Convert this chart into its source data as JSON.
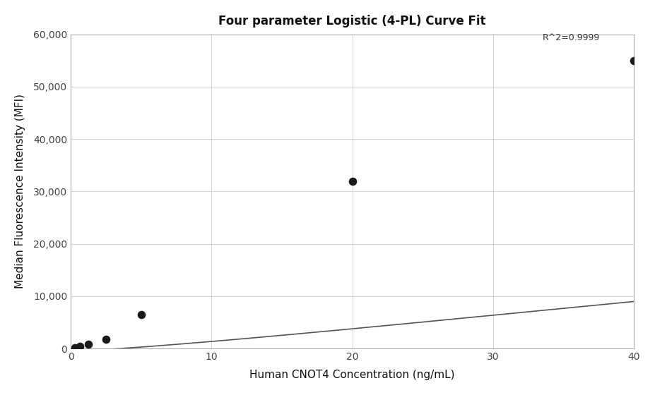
{
  "title": "Four parameter Logistic (4-PL) Curve Fit",
  "xlabel": "Human CNOT4 Concentration (ng/mL)",
  "ylabel": "Median Fluorescence Intensity (MFI)",
  "x_data_points": [
    0.313,
    0.625,
    1.25,
    2.5,
    5.0,
    20.0,
    40.0
  ],
  "y_data_points": [
    150,
    400,
    800,
    1800,
    6500,
    32000,
    55000
  ],
  "r2_text": "R^2=0.9999",
  "r2_x": 33.5,
  "r2_y": 58500,
  "xlim": [
    0,
    40
  ],
  "ylim": [
    0,
    60000
  ],
  "yticks": [
    0,
    10000,
    20000,
    30000,
    40000,
    50000,
    60000
  ],
  "xticks": [
    0,
    10,
    20,
    30,
    40
  ],
  "dot_color": "#1a1a1a",
  "dot_size": 70,
  "line_color": "#555555",
  "line_width": 1.2,
  "background_color": "#ffffff",
  "grid_color": "#cccccc",
  "title_fontsize": 12,
  "label_fontsize": 11,
  "tick_fontsize": 10,
  "annotation_fontsize": 9,
  "4pl_A": -500,
  "4pl_B": 1.25,
  "4pl_C": 200,
  "4pl_D": 80000
}
